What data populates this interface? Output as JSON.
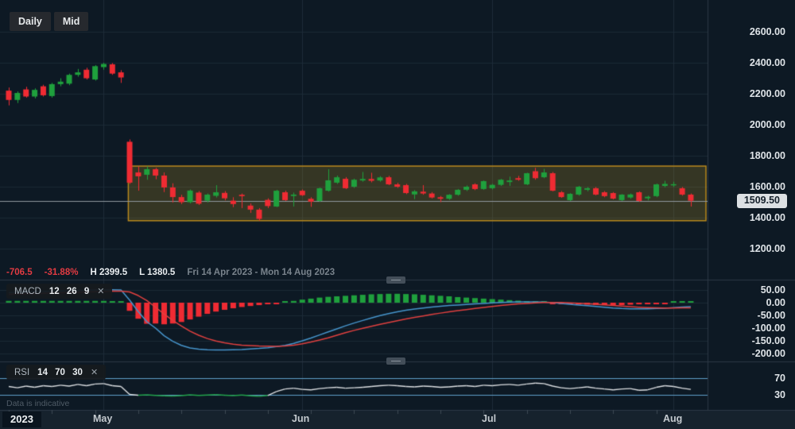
{
  "toolbar": {
    "daily_label": "Daily",
    "mid_label": "Mid"
  },
  "info_bar": {
    "change": "-706.5",
    "change_pct": "-31.88%",
    "high": "H 2399.5",
    "low": "L 1380.5",
    "range": "Fri 14 Apr 2023 - Mon 14 Aug 2023"
  },
  "indicators": {
    "macd": {
      "name": "MACD",
      "params": "12 26 9",
      "close": "✕"
    },
    "rsi": {
      "name": "RSI",
      "params": "14 70 30",
      "close": "✕"
    }
  },
  "disclaimer": "Data is indicative",
  "axes": {
    "price_ticks": [
      2600,
      2400,
      2200,
      2000,
      1800,
      1600,
      1400,
      1200
    ],
    "macd_ticks": [
      50,
      0,
      -50,
      -100,
      -150,
      -200
    ],
    "rsi_ticks": [
      70,
      30
    ],
    "last_price": "1509.50",
    "year_label": "2023",
    "months": [
      {
        "label": "May",
        "index": 11
      },
      {
        "label": "Jun",
        "index": 34
      },
      {
        "label": "Jul",
        "index": 56
      },
      {
        "label": "Aug",
        "index": 77
      }
    ]
  },
  "colors": {
    "background": "#0d1924",
    "bottom_bar": "#16222d",
    "grid_h": "#1b2935",
    "grid_v": "#1d2b38",
    "pane_divider": "#2c3845",
    "tick_mark": "#3d4954",
    "up": "#1fa03d",
    "down": "#ef2b33",
    "macd_line": "#4695cc",
    "signal_line": "#e0403f",
    "rsi_line": "#dcdfe2",
    "rsi_oversold": "#22a44b",
    "level_line": "#5f9fca",
    "box_fill": "rgba(214,170,42,0.20)",
    "box_border": "#b9891d",
    "last_price_line": "#8e979e"
  },
  "chart_data": [
    {
      "type": "candlestick",
      "title": "Daily price chart",
      "x_range_label": "Fri 14 Apr 2023 - Mon 14 Aug 2023",
      "period_high": 2399.5,
      "period_low": 1380.5,
      "last_price": 1509.5,
      "ylim": [
        1150,
        2700
      ],
      "range_box": {
        "price_top": 1733,
        "price_bottom": 1380.5,
        "start_index": 13.85,
        "extend_to_right_edge": true
      },
      "candles_ohlc": [
        [
          2220,
          2240,
          2125,
          2160
        ],
        [
          2160,
          2215,
          2140,
          2205
        ],
        [
          2228,
          2245,
          2175,
          2182
        ],
        [
          2182,
          2235,
          2170,
          2225
        ],
        [
          2248,
          2258,
          2182,
          2190
        ],
        [
          2185,
          2270,
          2175,
          2262
        ],
        [
          2262,
          2300,
          2248,
          2278
        ],
        [
          2265,
          2330,
          2255,
          2322
        ],
        [
          2322,
          2360,
          2310,
          2338
        ],
        [
          2355,
          2368,
          2292,
          2300
        ],
        [
          2292,
          2385,
          2285,
          2378
        ],
        [
          2372,
          2399.5,
          2355,
          2392
        ],
        [
          2390,
          2398,
          2322,
          2330
        ],
        [
          2338,
          2352,
          2270,
          2305
        ],
        [
          1890,
          1905,
          1618,
          1626
        ],
        [
          1692,
          1730,
          1574,
          1667
        ],
        [
          1677,
          1732,
          1645,
          1713
        ],
        [
          1713,
          1722,
          1648,
          1672
        ],
        [
          1672,
          1692,
          1565,
          1595
        ],
        [
          1595,
          1622,
          1498,
          1533
        ],
        [
          1533,
          1548,
          1488,
          1500
        ],
        [
          1500,
          1582,
          1492,
          1575
        ],
        [
          1562,
          1572,
          1482,
          1490
        ],
        [
          1510,
          1556,
          1498,
          1549
        ],
        [
          1541,
          1610,
          1530,
          1564
        ],
        [
          1560,
          1572,
          1512,
          1525
        ],
        [
          1510,
          1532,
          1468,
          1488
        ],
        [
          1548,
          1556,
          1462,
          1539
        ],
        [
          1478,
          1492,
          1431,
          1452
        ],
        [
          1452,
          1462,
          1380.5,
          1392
        ],
        [
          1515,
          1525,
          1462,
          1475
        ],
        [
          1472,
          1580,
          1468,
          1574
        ],
        [
          1564,
          1575,
          1508,
          1513
        ],
        [
          1540,
          1562,
          1472,
          1549
        ],
        [
          1574,
          1582,
          1540,
          1545
        ],
        [
          1522,
          1532,
          1470,
          1503
        ],
        [
          1508,
          1594,
          1502,
          1590
        ],
        [
          1574,
          1713,
          1568,
          1641
        ],
        [
          1626,
          1672,
          1618,
          1661
        ],
        [
          1651,
          1662,
          1585,
          1590
        ],
        [
          1600,
          1652,
          1592,
          1645
        ],
        [
          1640,
          1695,
          1632,
          1650
        ],
        [
          1650,
          1690,
          1628,
          1638
        ],
        [
          1640,
          1668,
          1632,
          1660
        ],
        [
          1661,
          1670,
          1610,
          1615
        ],
        [
          1615,
          1625,
          1592,
          1600
        ],
        [
          1610,
          1618,
          1552,
          1559
        ],
        [
          1550,
          1578,
          1520,
          1570
        ],
        [
          1568,
          1610,
          1548,
          1556
        ],
        [
          1556,
          1565,
          1524,
          1530
        ],
        [
          1532,
          1540,
          1500,
          1522
        ],
        [
          1522,
          1552,
          1515,
          1548
        ],
        [
          1548,
          1585,
          1542,
          1580
        ],
        [
          1580,
          1608,
          1572,
          1600
        ],
        [
          1615,
          1622,
          1578,
          1585
        ],
        [
          1585,
          1640,
          1580,
          1636
        ],
        [
          1590,
          1618,
          1582,
          1612
        ],
        [
          1612,
          1650,
          1605,
          1645
        ],
        [
          1630,
          1665,
          1605,
          1640
        ],
        [
          1655,
          1670,
          1638,
          1645
        ],
        [
          1615,
          1690,
          1610,
          1687
        ],
        [
          1700,
          1722,
          1645,
          1655
        ],
        [
          1661,
          1715,
          1655,
          1692
        ],
        [
          1687,
          1695,
          1570,
          1574
        ],
        [
          1564,
          1572,
          1528,
          1533
        ],
        [
          1513,
          1558,
          1508,
          1554
        ],
        [
          1549,
          1605,
          1542,
          1600
        ],
        [
          1580,
          1598,
          1570,
          1590
        ],
        [
          1590,
          1598,
          1544,
          1549
        ],
        [
          1564,
          1572,
          1532,
          1539
        ],
        [
          1559,
          1565,
          1518,
          1523
        ],
        [
          1513,
          1552,
          1508,
          1549
        ],
        [
          1530,
          1556,
          1522,
          1550
        ],
        [
          1564,
          1570,
          1502,
          1508
        ],
        [
          1525,
          1542,
          1512,
          1535
        ],
        [
          1539,
          1620,
          1532,
          1615
        ],
        [
          1605,
          1638,
          1596,
          1618
        ],
        [
          1610,
          1632,
          1598,
          1616
        ],
        [
          1590,
          1598,
          1542,
          1549
        ],
        [
          1549,
          1556,
          1472,
          1509.5
        ]
      ]
    },
    {
      "type": "macd",
      "params": [
        12,
        26,
        9
      ],
      "ylim": [
        -225,
        75
      ],
      "macd_line": [
        40,
        41,
        42,
        43,
        44,
        45,
        46,
        47,
        48,
        49,
        50,
        51,
        51,
        50,
        10,
        -35,
        -75,
        -100,
        -130,
        -152,
        -168,
        -178,
        -183,
        -185,
        -186,
        -186,
        -185,
        -184,
        -182,
        -180,
        -177,
        -173,
        -168,
        -160,
        -150,
        -139,
        -127,
        -115,
        -103,
        -91,
        -80,
        -70,
        -60,
        -51,
        -43,
        -36,
        -30,
        -25,
        -21,
        -17,
        -14,
        -11,
        -9,
        -7,
        -5,
        -3,
        -1,
        1,
        2,
        3,
        3,
        3,
        2,
        0,
        -3,
        -6,
        -9,
        -12,
        -15,
        -18,
        -21,
        -23,
        -24,
        -24.5,
        -24,
        -23,
        -21.5,
        -19.5,
        -17.5,
        -16
      ],
      "signal_line": [
        33,
        34,
        35,
        36,
        37,
        38,
        39,
        40,
        41,
        42,
        43,
        44,
        45,
        45,
        42,
        28,
        8,
        -18,
        -45,
        -70,
        -92,
        -112,
        -128,
        -141,
        -151,
        -158,
        -163,
        -167,
        -169,
        -170.5,
        -171,
        -171.5,
        -170,
        -167,
        -162,
        -155,
        -147,
        -138,
        -128,
        -118,
        -109,
        -101,
        -93,
        -85,
        -78,
        -71,
        -64,
        -58,
        -52,
        -46,
        -41,
        -36,
        -31,
        -27,
        -23,
        -19,
        -15,
        -11,
        -8,
        -5,
        -3,
        -1,
        0.5,
        1,
        0.5,
        -0.5,
        -2,
        -4,
        -6,
        -8.5,
        -11,
        -13.5,
        -16,
        -18,
        -19.5,
        -20.5,
        -21,
        -21,
        -20.5,
        -20
      ],
      "histogram_note": "histogram = macd_line - signal_line"
    },
    {
      "type": "rsi",
      "params": [
        14,
        70,
        30
      ],
      "levels": [
        70,
        30
      ],
      "values": [
        50,
        47,
        51,
        48,
        52,
        50,
        53,
        51,
        55,
        52,
        56,
        57,
        52,
        50,
        31,
        29,
        30,
        28.5,
        27.5,
        27,
        28,
        30,
        28.5,
        29.5,
        30.5,
        29,
        28,
        29.5,
        27.5,
        26.5,
        28.5,
        38,
        44,
        46,
        43,
        42,
        45,
        47,
        48,
        46,
        47,
        48,
        50,
        52,
        53,
        52,
        50,
        49,
        51,
        50,
        48,
        49,
        51,
        52,
        50,
        53,
        52,
        54,
        55,
        53,
        56,
        58,
        57,
        51,
        47,
        45,
        47,
        49,
        46,
        44,
        42,
        44,
        45,
        41,
        42,
        48,
        52,
        50,
        46,
        43
      ]
    }
  ]
}
